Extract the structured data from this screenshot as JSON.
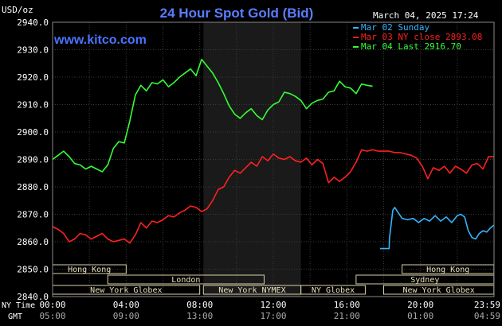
{
  "header": {
    "title": "24 Hour Spot Gold (Bid)",
    "unit": "USD/oz",
    "timestamp": "March 04, 2025 17:24",
    "watermark": "www.kitco.com"
  },
  "legend": [
    {
      "label": "Mar 02 Sunday",
      "color": "#33b5ff"
    },
    {
      "label": "Mar 03 NY close 2893.08",
      "color": "#ff2020"
    },
    {
      "label": "Mar 04 Last 2916.70",
      "color": "#33ff33"
    }
  ],
  "time_axis": {
    "ny_label": "NY Time",
    "gmt_label": "GMT",
    "ny": [
      "00:00",
      "04:00",
      "08:00",
      "12:00",
      "16:00",
      "20:00",
      "23:59"
    ],
    "gmt": [
      "05:00",
      "09:00",
      "13:00",
      "17:00",
      "21:00",
      "01:00",
      "04:59"
    ]
  },
  "sessions": {
    "row1": [
      {
        "label": "Hong Kong",
        "start": 0,
        "end": 4
      },
      {
        "label": "Hong Kong",
        "start": 19,
        "end": 23.99
      }
    ],
    "row2": [
      {
        "label": "London",
        "start": 3,
        "end": 11.5
      },
      {
        "label": "Sydney",
        "start": 16.5,
        "end": 23.99
      }
    ],
    "row3": [
      {
        "label": "New York Globex",
        "start": 0,
        "end": 8
      },
      {
        "label": "New York NYMEX",
        "start": 8.2,
        "end": 13.5
      },
      {
        "label": "NY Globex",
        "start": 13.5,
        "end": 17
      },
      {
        "label": "New York Globex",
        "start": 18,
        "end": 23.99
      }
    ]
  },
  "chart_data": {
    "type": "line",
    "title": "24 Hour Spot Gold (Bid)",
    "ylabel": "USD/oz",
    "ylim": [
      2840,
      2940
    ],
    "yticks": [
      "2940.0",
      "2930.0",
      "2920.0",
      "2910.0",
      "2900.0",
      "2890.0",
      "2880.0",
      "2870.0",
      "2860.0",
      "2850.0",
      "2840.0"
    ],
    "xlim": [
      0,
      24
    ],
    "grid": true,
    "legend_position": "top-right",
    "shaded_region": [
      8.2,
      13.5
    ],
    "series": [
      {
        "name": "Mar 02 Sunday",
        "color": "#33b5ff",
        "x": [
          17.8,
          18.3,
          18.31,
          18.5,
          18.6,
          18.8,
          19.0,
          19.3,
          19.6,
          19.9,
          20.2,
          20.5,
          20.8,
          21.1,
          21.4,
          21.7,
          22.0,
          22.2,
          22.4,
          22.6,
          22.8,
          23.0,
          23.2,
          23.4,
          23.6,
          23.8,
          23.99
        ],
        "y": [
          2857.5,
          2857.5,
          2861.0,
          2871.5,
          2872.5,
          2870.5,
          2868.5,
          2868.0,
          2868.5,
          2867.0,
          2868.5,
          2867.5,
          2869.5,
          2867.5,
          2869.0,
          2867.0,
          2869.5,
          2870.0,
          2869.0,
          2864.0,
          2861.5,
          2861.0,
          2863.0,
          2864.0,
          2863.5,
          2865.0,
          2866.0
        ]
      },
      {
        "name": "Mar 03 NY close 2893.08",
        "color": "#ff2020",
        "x": [
          0,
          0.3,
          0.6,
          0.9,
          1.2,
          1.5,
          1.8,
          2.1,
          2.4,
          2.7,
          3.0,
          3.3,
          3.6,
          3.9,
          4.2,
          4.5,
          4.8,
          5.1,
          5.4,
          5.7,
          6.0,
          6.3,
          6.6,
          6.9,
          7.2,
          7.5,
          7.8,
          8.1,
          8.4,
          8.7,
          9.0,
          9.3,
          9.6,
          9.9,
          10.2,
          10.5,
          10.8,
          11.1,
          11.4,
          11.7,
          12.0,
          12.3,
          12.6,
          12.9,
          13.2,
          13.5,
          13.8,
          14.1,
          14.4,
          14.7,
          15.0,
          15.3,
          15.6,
          15.9,
          16.2,
          16.5,
          16.8,
          17.1,
          17.4,
          17.7,
          18.0,
          18.3,
          18.6,
          18.9,
          19.2,
          19.5,
          19.8,
          20.1,
          20.4,
          20.7,
          21.0,
          21.3,
          21.6,
          21.9,
          22.2,
          22.5,
          22.8,
          23.1,
          23.4,
          23.7,
          23.99
        ],
        "y": [
          2865.5,
          2864.5,
          2863.0,
          2860.0,
          2861.0,
          2863.0,
          2862.5,
          2861.0,
          2862.0,
          2863.0,
          2861.0,
          2860.0,
          2860.5,
          2861.0,
          2859.5,
          2862.5,
          2867.0,
          2865.0,
          2867.5,
          2867.0,
          2868.0,
          2869.5,
          2869.0,
          2870.5,
          2871.5,
          2873.0,
          2872.5,
          2871.0,
          2872.0,
          2875.0,
          2879.0,
          2880.0,
          2883.5,
          2886.0,
          2885.0,
          2887.0,
          2889.0,
          2887.5,
          2891.0,
          2889.5,
          2892.0,
          2890.5,
          2890.0,
          2891.0,
          2889.5,
          2889.0,
          2890.5,
          2888.0,
          2890.0,
          2888.5,
          2881.5,
          2883.5,
          2882.0,
          2883.5,
          2885.5,
          2889.0,
          2893.5,
          2893.0,
          2893.5,
          2893.0,
          2893.0,
          2893.0,
          2892.5,
          2892.5,
          2892.0,
          2891.5,
          2890.5,
          2887.5,
          2883.0,
          2887.0,
          2886.0,
          2887.5,
          2885.0,
          2887.5,
          2886.5,
          2885.0,
          2888.0,
          2888.5,
          2886.5,
          2891.0,
          2891.0
        ]
      },
      {
        "name": "Mar 04 Last 2916.70",
        "color": "#33ff33",
        "x": [
          0,
          0.3,
          0.6,
          0.9,
          1.2,
          1.5,
          1.8,
          2.1,
          2.4,
          2.7,
          3.0,
          3.3,
          3.6,
          3.9,
          4.2,
          4.5,
          4.8,
          5.1,
          5.4,
          5.7,
          6.0,
          6.3,
          6.6,
          6.9,
          7.2,
          7.5,
          7.8,
          8.1,
          8.4,
          8.7,
          9.0,
          9.3,
          9.6,
          9.9,
          10.2,
          10.5,
          10.8,
          11.1,
          11.4,
          11.7,
          12.0,
          12.3,
          12.6,
          12.9,
          13.2,
          13.5,
          13.8,
          14.1,
          14.4,
          14.7,
          15.0,
          15.3,
          15.6,
          15.9,
          16.2,
          16.5,
          16.8,
          17.1,
          17.4
        ],
        "y": [
          2890.0,
          2891.5,
          2893.0,
          2891.0,
          2888.5,
          2888.0,
          2886.5,
          2887.5,
          2886.5,
          2885.5,
          2888.0,
          2894.0,
          2896.5,
          2896.0,
          2904.0,
          2913.5,
          2917.0,
          2915.0,
          2918.0,
          2917.5,
          2919.0,
          2916.5,
          2918.0,
          2920.0,
          2921.5,
          2923.0,
          2920.5,
          2926.5,
          2924.0,
          2921.5,
          2918.0,
          2914.0,
          2909.5,
          2906.5,
          2905.0,
          2907.0,
          2908.5,
          2906.0,
          2904.5,
          2908.0,
          2910.0,
          2911.0,
          2914.5,
          2914.0,
          2913.0,
          2911.5,
          2908.5,
          2910.5,
          2911.5,
          2912.0,
          2914.5,
          2915.0,
          2918.5,
          2916.5,
          2916.0,
          2914.0,
          2917.5,
          2917.0,
          2916.7
        ]
      }
    ]
  }
}
